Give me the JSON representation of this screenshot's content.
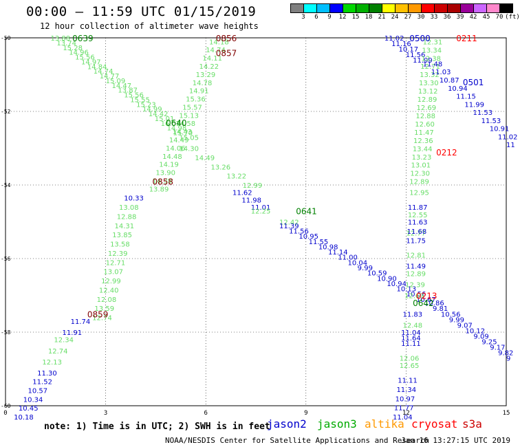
{
  "header": {
    "title": "00:00 – 11:59 UTC 01/15/2019",
    "subtitle": "12 hour collection of altimeter wave heights"
  },
  "legend": {
    "colors": [
      "#808080",
      "#00ffff",
      "#00bfff",
      "#0000ff",
      "#00d800",
      "#00b000",
      "#008000",
      "#ffff00",
      "#ffc000",
      "#ff9900",
      "#ff0000",
      "#cc0000",
      "#aa0000",
      "#990099",
      "#cc66ff",
      "#ff88cc",
      "#000000"
    ],
    "labels": [
      "3",
      "6",
      "9",
      "12",
      "15",
      "18",
      "21",
      "24",
      "27",
      "30",
      "33",
      "36",
      "39",
      "42",
      "45",
      "70",
      "(ft)"
    ]
  },
  "map": {
    "lat_labels": [
      "-50",
      "-52",
      "-54",
      "-56",
      "-58",
      "-60"
    ],
    "lon_labels": [
      "0",
      "3",
      "6",
      "9",
      "12",
      "15"
    ]
  },
  "time_labels": [
    {
      "text": "0639",
      "color": "#008000",
      "lon": 2.0,
      "lat": -50.0
    },
    {
      "text": "0856",
      "color": "#800000",
      "lon": 6.3,
      "lat": -50.0
    },
    {
      "text": "0857",
      "color": "#800000",
      "lon": 6.3,
      "lat": -50.4
    },
    {
      "text": "0640",
      "color": "#008000",
      "lon": 4.8,
      "lat": -52.3
    },
    {
      "text": "0858",
      "color": "#800000",
      "lon": 4.4,
      "lat": -53.9
    },
    {
      "text": "0859",
      "color": "#800000",
      "lon": 2.45,
      "lat": -57.5
    },
    {
      "text": "0641",
      "color": "#008000",
      "lon": 8.7,
      "lat": -54.7
    },
    {
      "text": "0642",
      "color": "#008000",
      "lon": 12.2,
      "lat": -57.2
    },
    {
      "text": "0500",
      "color": "#0000cc",
      "lon": 12.1,
      "lat": -50.0
    },
    {
      "text": "0211",
      "color": "#ff0000",
      "lon": 13.5,
      "lat": -50.0
    },
    {
      "text": "0501",
      "color": "#0000cc",
      "lon": 13.7,
      "lat": -51.2
    },
    {
      "text": "0212",
      "color": "#ff0000",
      "lon": 12.9,
      "lat": -53.1
    },
    {
      "text": "0213",
      "color": "#ff0000",
      "lon": 12.3,
      "lat": -57.0
    }
  ],
  "tracks": [
    {
      "color": "#66dd66",
      "lon0": 1.35,
      "lat0": -50.0,
      "lon1": 5.2,
      "lat1": -52.7,
      "values": [
        "13.88",
        "13.74",
        "15.28",
        "14.96",
        "15.56",
        "14.97",
        "14.84",
        "14.74",
        "14.77",
        "15.09",
        "14.47",
        "13.87",
        "15.56",
        "15.55",
        "15.23",
        "14.99",
        "14.42",
        "15.01",
        "16.07",
        "14.98",
        "15.70",
        "15.05"
      ]
    },
    {
      "color": "#66dd66",
      "lon0": 5.2,
      "lat0": -53.0,
      "lon1": 7.1,
      "lat1": -54.0,
      "values": [
        "14.30",
        "14.49",
        "13.26",
        "13.22",
        "12.99"
      ]
    },
    {
      "color": "#0000cc",
      "lon0": 6.8,
      "lat0": -54.2,
      "lon1": 7.35,
      "lat1": -54.6,
      "values": [
        "11.62",
        "11.98",
        "11.01"
      ]
    },
    {
      "color": "#66dd66",
      "lon0": 7.35,
      "lat0": -54.7,
      "lon1": 8.2,
      "lat1": -55.0,
      "values": [
        "12.25",
        "12.42"
      ]
    },
    {
      "color": "#0000cc",
      "lon0": 8.2,
      "lat0": -55.1,
      "lon1": 12.3,
      "lat1": -57.1,
      "values": [
        "11.39",
        "11.56",
        "10.95",
        "11.55",
        "10.98",
        "11.14",
        "11.00",
        "10.04",
        "9.99",
        "10.59",
        "10.90",
        "10.94",
        "10.13",
        "10.56",
        "10.67"
      ]
    },
    {
      "color": "#66dd66",
      "lon0": 6.1,
      "lat0": -50.1,
      "lon1": 4.3,
      "lat1": -54.1,
      "values": [
        "14.18",
        "14.74",
        "14.11",
        "14.22",
        "13.29",
        "14.78",
        "14.91",
        "15.36",
        "15.57",
        "15.13",
        "14.58",
        "14.43",
        "14.49",
        "14.06",
        "14.48",
        "14.19",
        "13.90",
        "14.38",
        "13.89"
      ]
    },
    {
      "color": "#0000cc",
      "lon0": 3.55,
      "lat0": -54.35,
      "lon1": 3.55,
      "lat1": -54.35,
      "values": [
        "10.33"
      ]
    },
    {
      "color": "#66dd66",
      "lon0": 3.4,
      "lat0": -54.6,
      "lon1": 2.6,
      "lat1": -57.6,
      "values": [
        "13.08",
        "12.88",
        "14.31",
        "13.85",
        "13.58",
        "12.39",
        "12.71",
        "13.07",
        "12.99",
        "12.40",
        "12.08",
        "13.59",
        "12.74"
      ]
    },
    {
      "color": "#0000cc",
      "lon0": 1.95,
      "lat0": -57.7,
      "lon1": 1.7,
      "lat1": -58.0,
      "values": [
        "11.74",
        "11.91"
      ]
    },
    {
      "color": "#66dd66",
      "lon0": 1.45,
      "lat0": -58.2,
      "lon1": 1.1,
      "lat1": -58.8,
      "values": [
        "12.34",
        "12.74",
        "12.13"
      ]
    },
    {
      "color": "#0000cc",
      "lon0": 0.95,
      "lat0": -59.1,
      "lon1": 0.25,
      "lat1": -60.3,
      "values": [
        "11.30",
        "11.52",
        "10.57",
        "10.34",
        "10.45",
        "10.18"
      ]
    },
    {
      "color": "#0000cc",
      "lon0": 11.35,
      "lat0": -50.0,
      "lon1": 12.2,
      "lat1": -50.6,
      "values": [
        "11.02",
        "11.16",
        "10.17",
        "11.56",
        "11.99"
      ]
    },
    {
      "color": "#66dd66",
      "lon0": 12.5,
      "lat0": -50.1,
      "lon1": 12.1,
      "lat1": -53.9,
      "values": [
        "12.31",
        "13.34",
        "12.38",
        "12.71",
        "13.32",
        "13.30",
        "13.12",
        "12.89",
        "12.69",
        "12.88",
        "12.60",
        "11.47",
        "12.36",
        "13.44",
        "13.23",
        "13.01",
        "12.30",
        "12.89"
      ]
    },
    {
      "color": "#0000cc",
      "lon0": 12.5,
      "lat0": -50.7,
      "lon1": 15.0,
      "lat1": -52.9,
      "values": [
        "11.48",
        "11.03",
        "10.87",
        "10.94",
        "11.15",
        "11.99",
        "11.53",
        "11.53",
        "10.91",
        "11.02",
        "11"
      ]
    },
    {
      "color": "#66dd66",
      "lon0": 12.1,
      "lat0": -54.2,
      "lon1": 12.0,
      "lat1": -54.6,
      "values": [
        "12.95"
      ]
    },
    {
      "color": "#0000cc",
      "lon0": 12.05,
      "lat0": -54.6,
      "lon1": 12.05,
      "lat1": -54.6,
      "values": [
        "11.87"
      ]
    },
    {
      "color": "#66dd66",
      "lon0": 12.05,
      "lat0": -54.8,
      "lon1": 12.0,
      "lat1": -55.3,
      "values": [
        "12.55",
        "12.77"
      ]
    },
    {
      "color": "#0000cc",
      "lon0": 12.05,
      "lat0": -55.0,
      "lon1": 12.0,
      "lat1": -55.5,
      "values": [
        "11.63",
        "11.68",
        "11.75"
      ]
    },
    {
      "color": "#66dd66",
      "lon0": 12.0,
      "lat0": -55.9,
      "lon1": 12.0,
      "lat1": -55.9,
      "values": [
        "12.81"
      ]
    },
    {
      "color": "#0000cc",
      "lon0": 12.0,
      "lat0": -56.2,
      "lon1": 12.0,
      "lat1": -56.2,
      "values": [
        "11.49"
      ]
    },
    {
      "color": "#66dd66",
      "lon0": 12.0,
      "lat0": -56.4,
      "lon1": 11.95,
      "lat1": -57.0,
      "values": [
        "12.89",
        "12.39",
        "12.69"
      ]
    },
    {
      "color": "#0000cc",
      "lon0": 12.55,
      "lat0": -57.2,
      "lon1": 15.0,
      "lat1": -58.7,
      "values": [
        "10.86",
        "9.81",
        "10.56",
        "9.99",
        "9.07",
        "10.12",
        "9.09",
        "9.25",
        "9.17",
        "9.82",
        "9"
      ]
    },
    {
      "color": "#0000cc",
      "lon0": 11.9,
      "lat0": -57.5,
      "lon1": 11.9,
      "lat1": -57.5,
      "values": [
        "11.83"
      ]
    },
    {
      "color": "#66dd66",
      "lon0": 11.9,
      "lat0": -57.8,
      "lon1": 11.9,
      "lat1": -57.8,
      "values": [
        "12.48"
      ]
    },
    {
      "color": "#0000cc",
      "lon0": 11.85,
      "lat0": -58.0,
      "lon1": 11.85,
      "lat1": -58.3,
      "values": [
        "11.04",
        "11.64",
        "11.11"
      ]
    },
    {
      "color": "#66dd66",
      "lon0": 11.8,
      "lat0": -58.7,
      "lon1": 11.8,
      "lat1": -58.9,
      "values": [
        "12.06",
        "12.65"
      ]
    },
    {
      "color": "#0000cc",
      "lon0": 11.75,
      "lat0": -59.3,
      "lon1": 11.6,
      "lat1": -60.3,
      "values": [
        "11.11",
        "11.34",
        "10.97",
        "11.77",
        "11.04"
      ]
    }
  ],
  "footer": {
    "note": "note:  1) Time is in UTC;  2) SWH is in feet",
    "satellites": [
      {
        "name": "jason2",
        "color": "#0000cc"
      },
      {
        "name": "jason3",
        "color": "#00aa00"
      },
      {
        "name": "altika",
        "color": "#ff9900"
      },
      {
        "name": "cryosat",
        "color": "#ff0000"
      },
      {
        "name": "s3a",
        "color": "#cc0000"
      }
    ],
    "credit": "NOAA/NESDIS Center for Satellite Applications and Research",
    "timestamp": "Jan 16 13:27:15 UTC 2019"
  }
}
